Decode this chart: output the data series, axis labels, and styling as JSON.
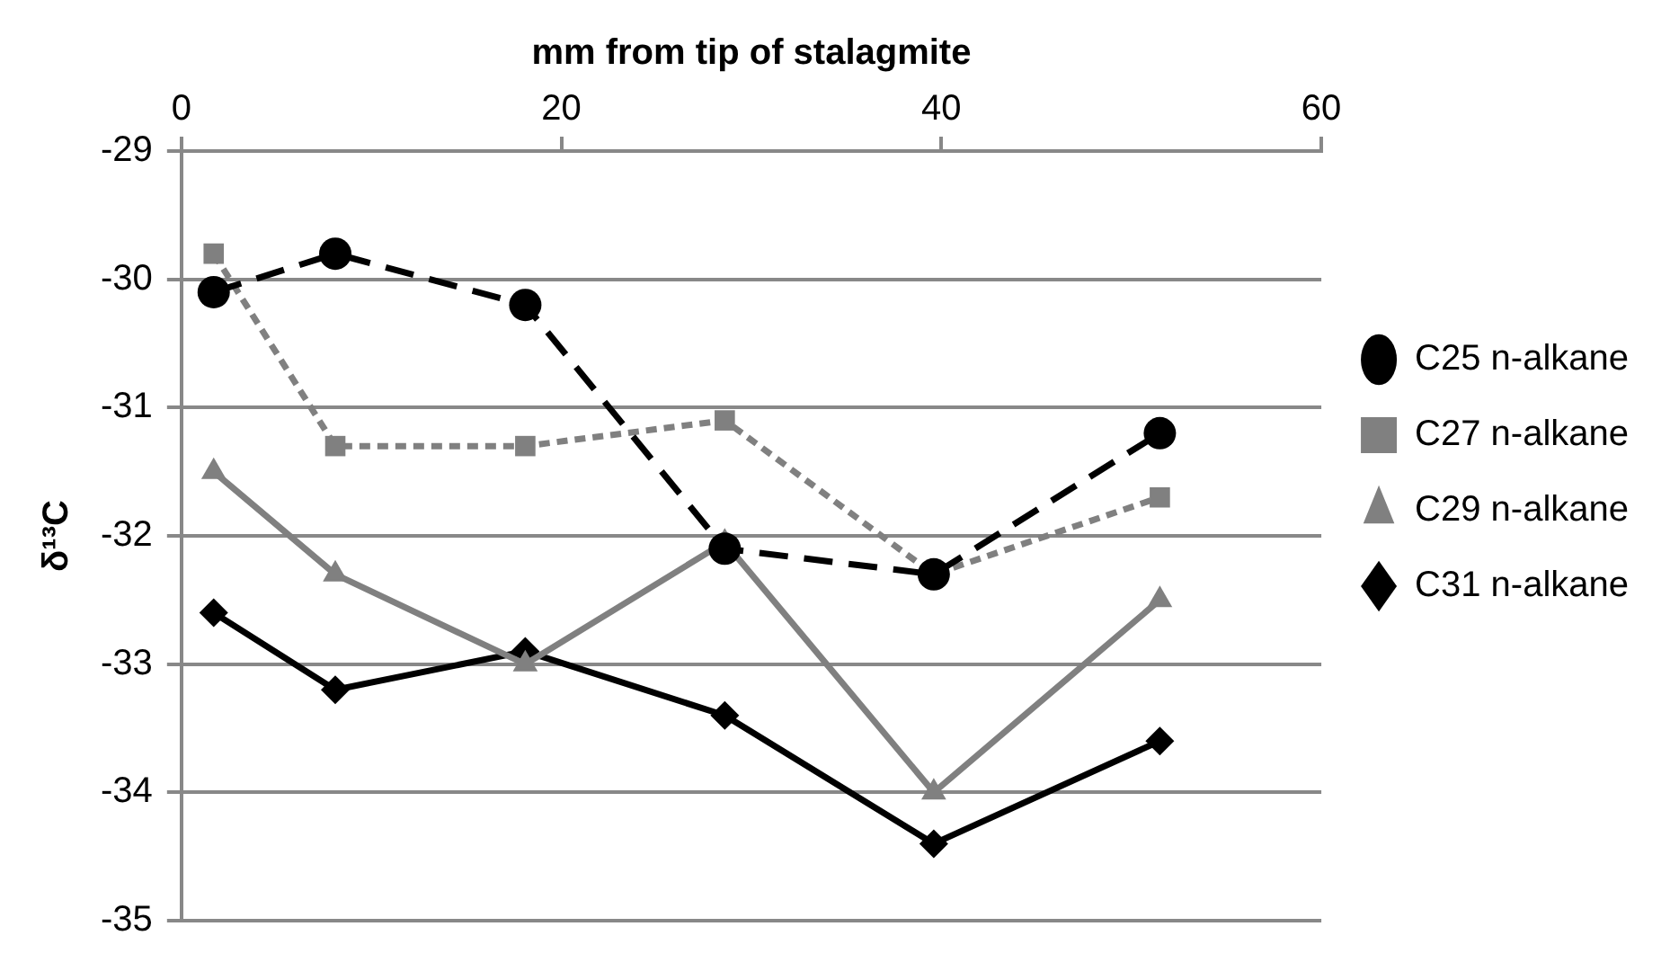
{
  "chart_data": {
    "type": "line",
    "xlabel": "mm from tip of stalagmite",
    "ylabel": "δ¹³C",
    "xlim": [
      0,
      60
    ],
    "xticks": [
      0,
      20,
      40,
      60
    ],
    "ylim": [
      -35,
      -29
    ],
    "yticks": [
      -35,
      -34,
      -33,
      -32,
      -31,
      -30,
      -29
    ],
    "grid": "y",
    "legend": "right",
    "x": [
      1.7,
      8.1,
      18.1,
      28.6,
      39.6,
      51.5
    ],
    "series": [
      {
        "name": "C25 n-alkane",
        "color": "#000000",
        "marker": "circle",
        "line_style": "dashed",
        "values": [
          -30.1,
          -29.8,
          -30.2,
          -32.1,
          -32.3,
          -31.2
        ]
      },
      {
        "name": "C27 n-alkane",
        "color": "#808080",
        "marker": "square",
        "line_style": "dotted",
        "values": [
          -29.8,
          -31.3,
          -31.3,
          -31.1,
          -32.3,
          -31.7
        ]
      },
      {
        "name": "C29 n-alkane",
        "color": "#808080",
        "marker": "triangle",
        "line_style": "solid",
        "values": [
          -31.5,
          -32.3,
          -33.0,
          -32.05,
          -34.0,
          -32.5
        ]
      },
      {
        "name": "C31 n-alkane",
        "color": "#000000",
        "marker": "diamond",
        "line_style": "solid",
        "values": [
          -32.6,
          -33.2,
          -32.9,
          -33.4,
          -34.4,
          -33.6
        ]
      }
    ]
  }
}
